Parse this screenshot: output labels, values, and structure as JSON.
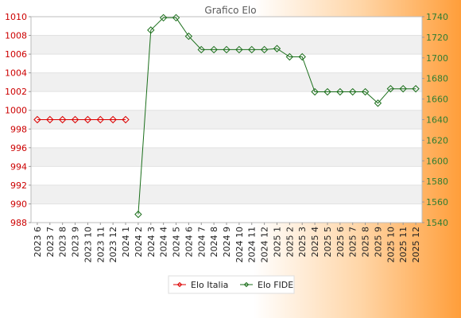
{
  "chart_data": {
    "type": "line",
    "title": "Grafico Elo",
    "categories": [
      "2023 6",
      "2023 7",
      "2023 8",
      "2023 9",
      "2023 10",
      "2023 11",
      "2023 12",
      "2024 1",
      "2024 2",
      "2024 3",
      "2024 4",
      "2024 5",
      "2024 6",
      "2024 7",
      "2024 8",
      "2024 9",
      "2024 10",
      "2024 11",
      "2024 12",
      "2025 1",
      "2025 2",
      "2025 3",
      "2025 4",
      "2025 5",
      "2025 6",
      "2025 7",
      "2025 8",
      "2025 9",
      "2025 10",
      "2025 11",
      "2025 12"
    ],
    "left_axis": {
      "min": 988,
      "max": 1010,
      "ticks": [
        "1010",
        "1008",
        "1006",
        "1004",
        "1002",
        "1000",
        "998",
        "996",
        "994",
        "992",
        "990",
        "988"
      ],
      "color": "#cc0000"
    },
    "right_axis": {
      "min": 1540,
      "max": 1740,
      "ticks": [
        "1740",
        "1720",
        "1700",
        "1680",
        "1660",
        "1640",
        "1620",
        "1600",
        "1580",
        "1560",
        "1540"
      ],
      "color": "#2e7d32"
    },
    "series": [
      {
        "name": "Elo Italia",
        "axis": "left",
        "color": "#dd0000",
        "values": [
          999,
          999,
          999,
          999,
          999,
          999,
          999,
          999,
          null,
          null,
          null,
          null,
          null,
          null,
          null,
          null,
          null,
          null,
          null,
          null,
          null,
          null,
          null,
          null,
          null,
          null,
          null,
          null,
          null,
          null,
          null
        ]
      },
      {
        "name": "Elo FIDE",
        "axis": "right",
        "color": "#1b6f1b",
        "values": [
          null,
          null,
          null,
          null,
          null,
          null,
          null,
          null,
          1548,
          1727,
          1739,
          1739,
          1721,
          1708,
          1708,
          1708,
          1708,
          1708,
          1708,
          1709,
          1701,
          1701,
          1667,
          1667,
          1667,
          1667,
          1667,
          1656,
          1670,
          1670,
          1670
        ]
      }
    ],
    "legend": [
      {
        "name": "Elo Italia",
        "color": "#dd0000"
      },
      {
        "name": "Elo FIDE",
        "color": "#1b6f1b"
      }
    ],
    "legend_position": "bottom-center",
    "grid": true
  }
}
